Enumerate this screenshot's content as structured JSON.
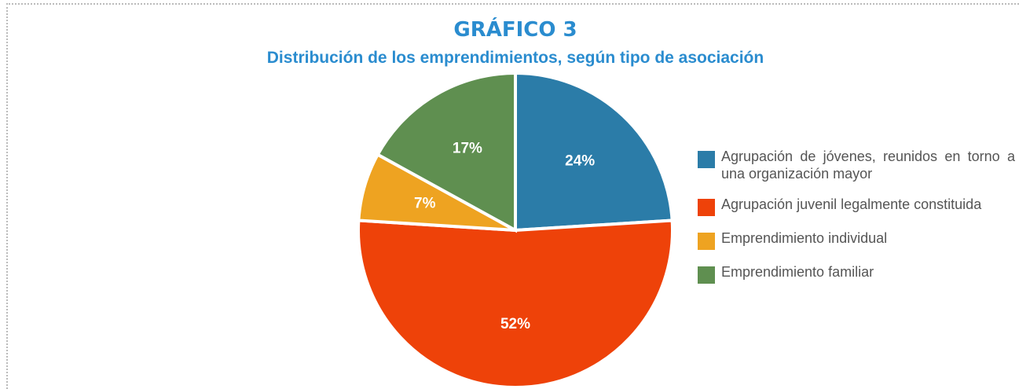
{
  "chart_data": {
    "type": "pie",
    "title": "GRÁFICO 3",
    "subtitle": "Distribución de los emprendimientos, según tipo de asociación",
    "categories": [
      "Agrupación de jóvenes, reunidos en torno a una organización mayor",
      "Agrupación juvenil legalmente constituida",
      "Emprendimiento individual",
      "Emprendimiento familiar"
    ],
    "values": [
      24,
      52,
      7,
      17
    ],
    "value_labels": [
      "24%",
      "52%",
      "7%",
      "17%"
    ],
    "colors": [
      "#2b7ca8",
      "#ee4209",
      "#eea321",
      "#5f8f50"
    ],
    "legend": "right"
  }
}
